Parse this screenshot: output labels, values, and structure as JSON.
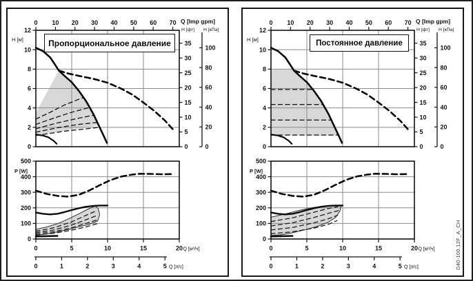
{
  "figure": {
    "drawing_number": "D40-100.12F_A_CH",
    "colors": {
      "grid": "#8a8a8a",
      "curve": "#0b0b0b",
      "region_fill": "#d8d8d8",
      "frame": "#161616"
    }
  },
  "panels": [
    {
      "title": "Пропорциональное давление",
      "mode": "proportional"
    },
    {
      "title": "Постоянное давление",
      "mode": "constant"
    }
  ],
  "chart_data": [
    {
      "type": "line",
      "id": "head_chart",
      "x_axis": {
        "label": "Q [м³/ч]",
        "min": 0,
        "max": 20,
        "gridlines": [
          5,
          10,
          15
        ]
      },
      "x_axis_top": {
        "label": "Q [Imp gpm]",
        "ticks": [
          0,
          10,
          20,
          30,
          40,
          50,
          60,
          70
        ]
      },
      "y_axis": {
        "label": "H [м]",
        "min": 0,
        "max": 12,
        "ticks": [
          12,
          10,
          8,
          6,
          4,
          2,
          0
        ],
        "gridlines": [
          2,
          4,
          6,
          8,
          10
        ]
      },
      "y_axis_right": [
        {
          "label": "H [фт]",
          "ticks": [
            35,
            30,
            25,
            20,
            15,
            10,
            5,
            0
          ]
        },
        {
          "label": "H [кПа]",
          "ticks": [
            100,
            80,
            60,
            40,
            20,
            0
          ]
        }
      ],
      "series": [
        {
          "name": "pump-curve-max",
          "line": "solid",
          "width": 2.6,
          "points": [
            [
              0,
              10.2
            ],
            [
              1,
              9.85
            ],
            [
              2,
              9.2
            ],
            [
              2.6,
              8.55
            ],
            [
              3.2,
              7.85
            ],
            [
              4,
              7.3
            ],
            [
              5,
              6.65
            ],
            [
              6,
              5.75
            ],
            [
              7,
              4.7
            ],
            [
              8,
              3.4
            ],
            [
              8.8,
              2.15
            ],
            [
              9.5,
              1.05
            ],
            [
              9.9,
              0.4
            ]
          ]
        },
        {
          "name": "pump-curve-max-extension",
          "line": "dashed",
          "width": 2.6,
          "points": [
            [
              3.2,
              7.85
            ],
            [
              4.5,
              7.55
            ],
            [
              6,
              7.3
            ],
            [
              8,
              7.0
            ],
            [
              10,
              6.6
            ],
            [
              12,
              5.95
            ],
            [
              13.5,
              5.35
            ],
            [
              15,
              4.55
            ],
            [
              16.5,
              3.7
            ],
            [
              18,
              2.7
            ],
            [
              19.1,
              1.8
            ]
          ]
        },
        {
          "name": "pump-curve-min",
          "line": "solid",
          "width": 2.2,
          "points": [
            [
              0,
              1.25
            ],
            [
              1,
              1.15
            ],
            [
              1.8,
              0.95
            ],
            [
              2.5,
              0.6
            ],
            [
              2.9,
              0.3
            ]
          ]
        }
      ],
      "control_regions": {
        "proportional": {
          "fill": [
            [
              0,
              3.5
            ],
            [
              3.2,
              7.85
            ],
            [
              4,
              7.3
            ],
            [
              5,
              6.65
            ],
            [
              6,
              5.75
            ],
            [
              7,
              4.7
            ],
            [
              8,
              3.4
            ],
            [
              8.75,
              2.2
            ],
            [
              0,
              1.15
            ]
          ],
          "dashed_lines": [
            [
              [
                0,
                2.85
              ],
              [
                2,
                3.55
              ],
              [
                4,
                4.3
              ],
              [
                6.7,
                5.1
              ]
            ],
            [
              [
                0,
                2.3
              ],
              [
                2.5,
                2.95
              ],
              [
                5,
                3.55
              ],
              [
                7.5,
                4.05
              ]
            ],
            [
              [
                0,
                1.85
              ],
              [
                3,
                2.45
              ],
              [
                6,
                2.95
              ],
              [
                8.1,
                3.25
              ]
            ],
            [
              [
                0,
                1.5
              ],
              [
                3,
                1.95
              ],
              [
                6,
                2.3
              ],
              [
                8.55,
                2.5
              ]
            ],
            [
              [
                0,
                1.15
              ],
              [
                4,
                1.6
              ],
              [
                8.9,
                2.0
              ]
            ]
          ]
        },
        "constant": {
          "fill": [
            [
              0,
              8
            ],
            [
              3.0,
              8
            ],
            [
              3.2,
              7.85
            ],
            [
              4,
              7.3
            ],
            [
              5,
              6.65
            ],
            [
              6,
              5.75
            ],
            [
              7,
              4.7
            ],
            [
              8,
              3.4
            ],
            [
              8.8,
              2.15
            ],
            [
              9.35,
              1.15
            ],
            [
              0,
              1.15
            ]
          ],
          "dashed_lines": [
            [
              [
                0,
                5.9
              ],
              [
                5.8,
                5.9
              ]
            ],
            [
              [
                0,
                4.35
              ],
              [
                7.3,
                4.35
              ]
            ],
            [
              [
                0,
                2.75
              ],
              [
                8.4,
                2.75
              ]
            ],
            [
              [
                0,
                1.2
              ],
              [
                9.3,
                1.2
              ]
            ]
          ]
        }
      }
    },
    {
      "type": "line",
      "id": "power_chart",
      "y_axis": {
        "label": "P [W]",
        "min": 0,
        "max": 500,
        "ticks": [
          500,
          400,
          300,
          200,
          100,
          0
        ],
        "gridlines": [
          100,
          200,
          300,
          400
        ]
      },
      "x_axis": {
        "label": "Q [м³/ч]",
        "min": 0,
        "max": 20,
        "ticks": [
          0,
          5,
          10,
          15,
          20
        ],
        "gridlines": [
          5,
          10,
          15
        ]
      },
      "x_axis_secondary": {
        "label": "Q [л/с]",
        "min": 0,
        "max": 5,
        "ticks": [
          0,
          1,
          2,
          3,
          4,
          5
        ]
      },
      "series": [
        {
          "name": "power-curve-max",
          "line": "dashed",
          "width": 2.6,
          "points": [
            [
              0,
              310
            ],
            [
              1.5,
              290
            ],
            [
              3,
              277
            ],
            [
              4.5,
              272
            ],
            [
              6,
              284
            ],
            [
              7.5,
              313
            ],
            [
              9,
              348
            ],
            [
              10.5,
              380
            ],
            [
              12,
              402
            ],
            [
              13.5,
              414
            ],
            [
              14.5,
              419
            ],
            [
              16,
              418
            ],
            [
              17.5,
              416
            ],
            [
              19,
              417
            ]
          ]
        },
        {
          "name": "power-curve-control-max",
          "line": "solid",
          "width": 2.4,
          "points": [
            [
              0,
              170
            ],
            [
              1,
              162
            ],
            [
              2,
              158
            ],
            [
              3,
              162
            ],
            [
              4,
              173
            ],
            [
              5,
              186
            ],
            [
              6,
              198
            ],
            [
              7,
              207
            ],
            [
              8,
              213
            ],
            [
              9,
              215
            ],
            [
              10,
              215
            ]
          ]
        },
        {
          "name": "power-curve-min",
          "line": "solid",
          "width": 2.6,
          "points": [
            [
              0,
              17
            ],
            [
              1.5,
              18
            ],
            [
              3,
              20
            ]
          ]
        }
      ],
      "control_bands": {
        "proportional": {
          "fill": [
            [
              0,
              62
            ],
            [
              1.5,
              77
            ],
            [
              3,
              98
            ],
            [
              4.5,
              128
            ],
            [
              6,
              162
            ],
            [
              7,
              186
            ],
            [
              7.8,
              202
            ],
            [
              8.3,
              212
            ],
            [
              8.7,
              195
            ],
            [
              8.9,
              155
            ],
            [
              8.6,
              115
            ],
            [
              7.5,
              95
            ],
            [
              6,
              78
            ],
            [
              4.5,
              60
            ],
            [
              3,
              45
            ],
            [
              1.5,
              32
            ],
            [
              0,
              24
            ]
          ],
          "dashed_lines": [
            [
              [
                0,
                50
              ],
              [
                2.5,
                72
              ],
              [
                5,
                110
              ],
              [
                7,
                152
              ],
              [
                8.5,
                182
              ]
            ],
            [
              [
                0,
                41
              ],
              [
                2.5,
                58
              ],
              [
                5,
                90
              ],
              [
                7,
                124
              ],
              [
                8.6,
                152
              ]
            ],
            [
              [
                0,
                33
              ],
              [
                2.5,
                47
              ],
              [
                5,
                72
              ],
              [
                7,
                100
              ],
              [
                8.7,
                125
              ]
            ],
            [
              [
                0,
                26
              ],
              [
                2.5,
                37
              ],
              [
                5,
                56
              ],
              [
                7,
                78
              ],
              [
                8.5,
                98
              ]
            ]
          ]
        },
        "constant": {
          "fill": [
            [
              0,
              140
            ],
            [
              2,
              161
            ],
            [
              4,
              185
            ],
            [
              6,
              203
            ],
            [
              7.5,
              211
            ],
            [
              9,
              215
            ],
            [
              9.8,
              213
            ],
            [
              9.6,
              178
            ],
            [
              9,
              138
            ],
            [
              8,
              108
            ],
            [
              6.5,
              82
            ],
            [
              5,
              62
            ],
            [
              3,
              40
            ],
            [
              1.5,
              28
            ],
            [
              0,
              22
            ]
          ],
          "dashed_lines": [
            [
              [
                0,
                112
              ],
              [
                3,
                136
              ],
              [
                6,
                172
              ],
              [
                8,
                196
              ],
              [
                9.3,
                207
              ]
            ],
            [
              [
                0,
                84
              ],
              [
                3,
                104
              ],
              [
                6,
                138
              ],
              [
                8,
                165
              ],
              [
                9.4,
                182
              ]
            ],
            [
              [
                0,
                58
              ],
              [
                3,
                74
              ],
              [
                6,
                104
              ],
              [
                8,
                130
              ],
              [
                9.3,
                152
              ]
            ],
            [
              [
                0,
                34
              ],
              [
                3,
                46
              ],
              [
                6,
                70
              ],
              [
                8,
                94
              ],
              [
                9.2,
                118
              ]
            ]
          ]
        }
      }
    }
  ]
}
